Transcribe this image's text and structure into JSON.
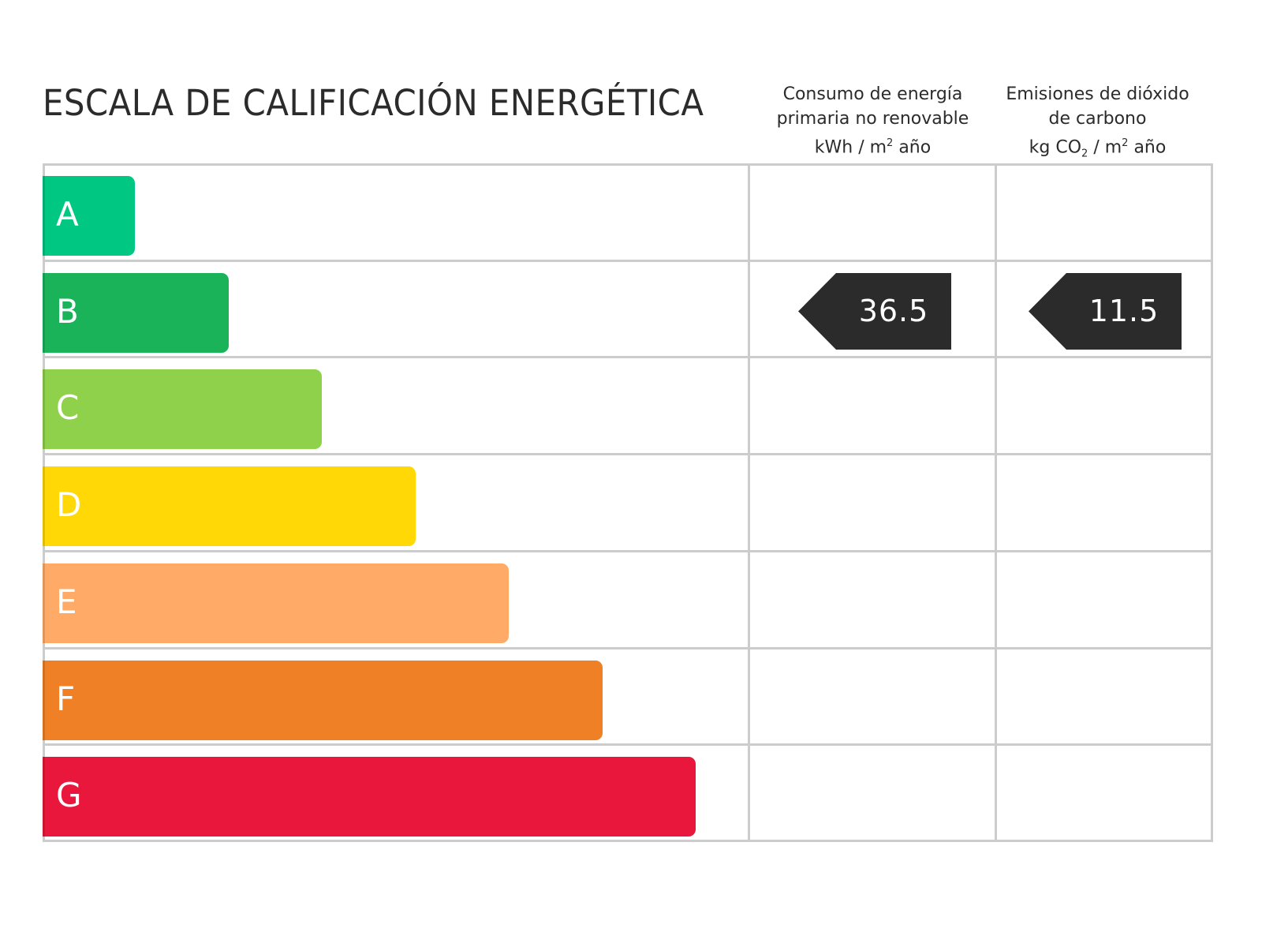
{
  "title": "ESCALA DE CALIFICACIÓN ENERGÉTICA",
  "columns": {
    "energy": {
      "line1": "Consumo de energía",
      "line2": "primaria no renovable",
      "unit_pre": "kWh / m",
      "unit_sup": "2",
      "unit_post": " año"
    },
    "co2": {
      "line1": "Emisiones de dióxido",
      "line2": "de carbono",
      "unit_pre": "kg CO",
      "unit_sub": "2",
      "unit_mid": " / m",
      "unit_sup": "2",
      "unit_post": " año"
    }
  },
  "ratings": [
    {
      "letter": "A",
      "color": "#00c882"
    },
    {
      "letter": "B",
      "color": "#1ab35a"
    },
    {
      "letter": "C",
      "color": "#8fd14a"
    },
    {
      "letter": "D",
      "color": "#ffd805"
    },
    {
      "letter": "E",
      "color": "#ffaa66"
    },
    {
      "letter": "F",
      "color": "#ef8026"
    },
    {
      "letter": "G",
      "color": "#e9173b"
    }
  ],
  "result": {
    "rating": "B",
    "energy_value": "36.5",
    "co2_value": "11.5",
    "tag_color": "#2b2b2b"
  }
}
